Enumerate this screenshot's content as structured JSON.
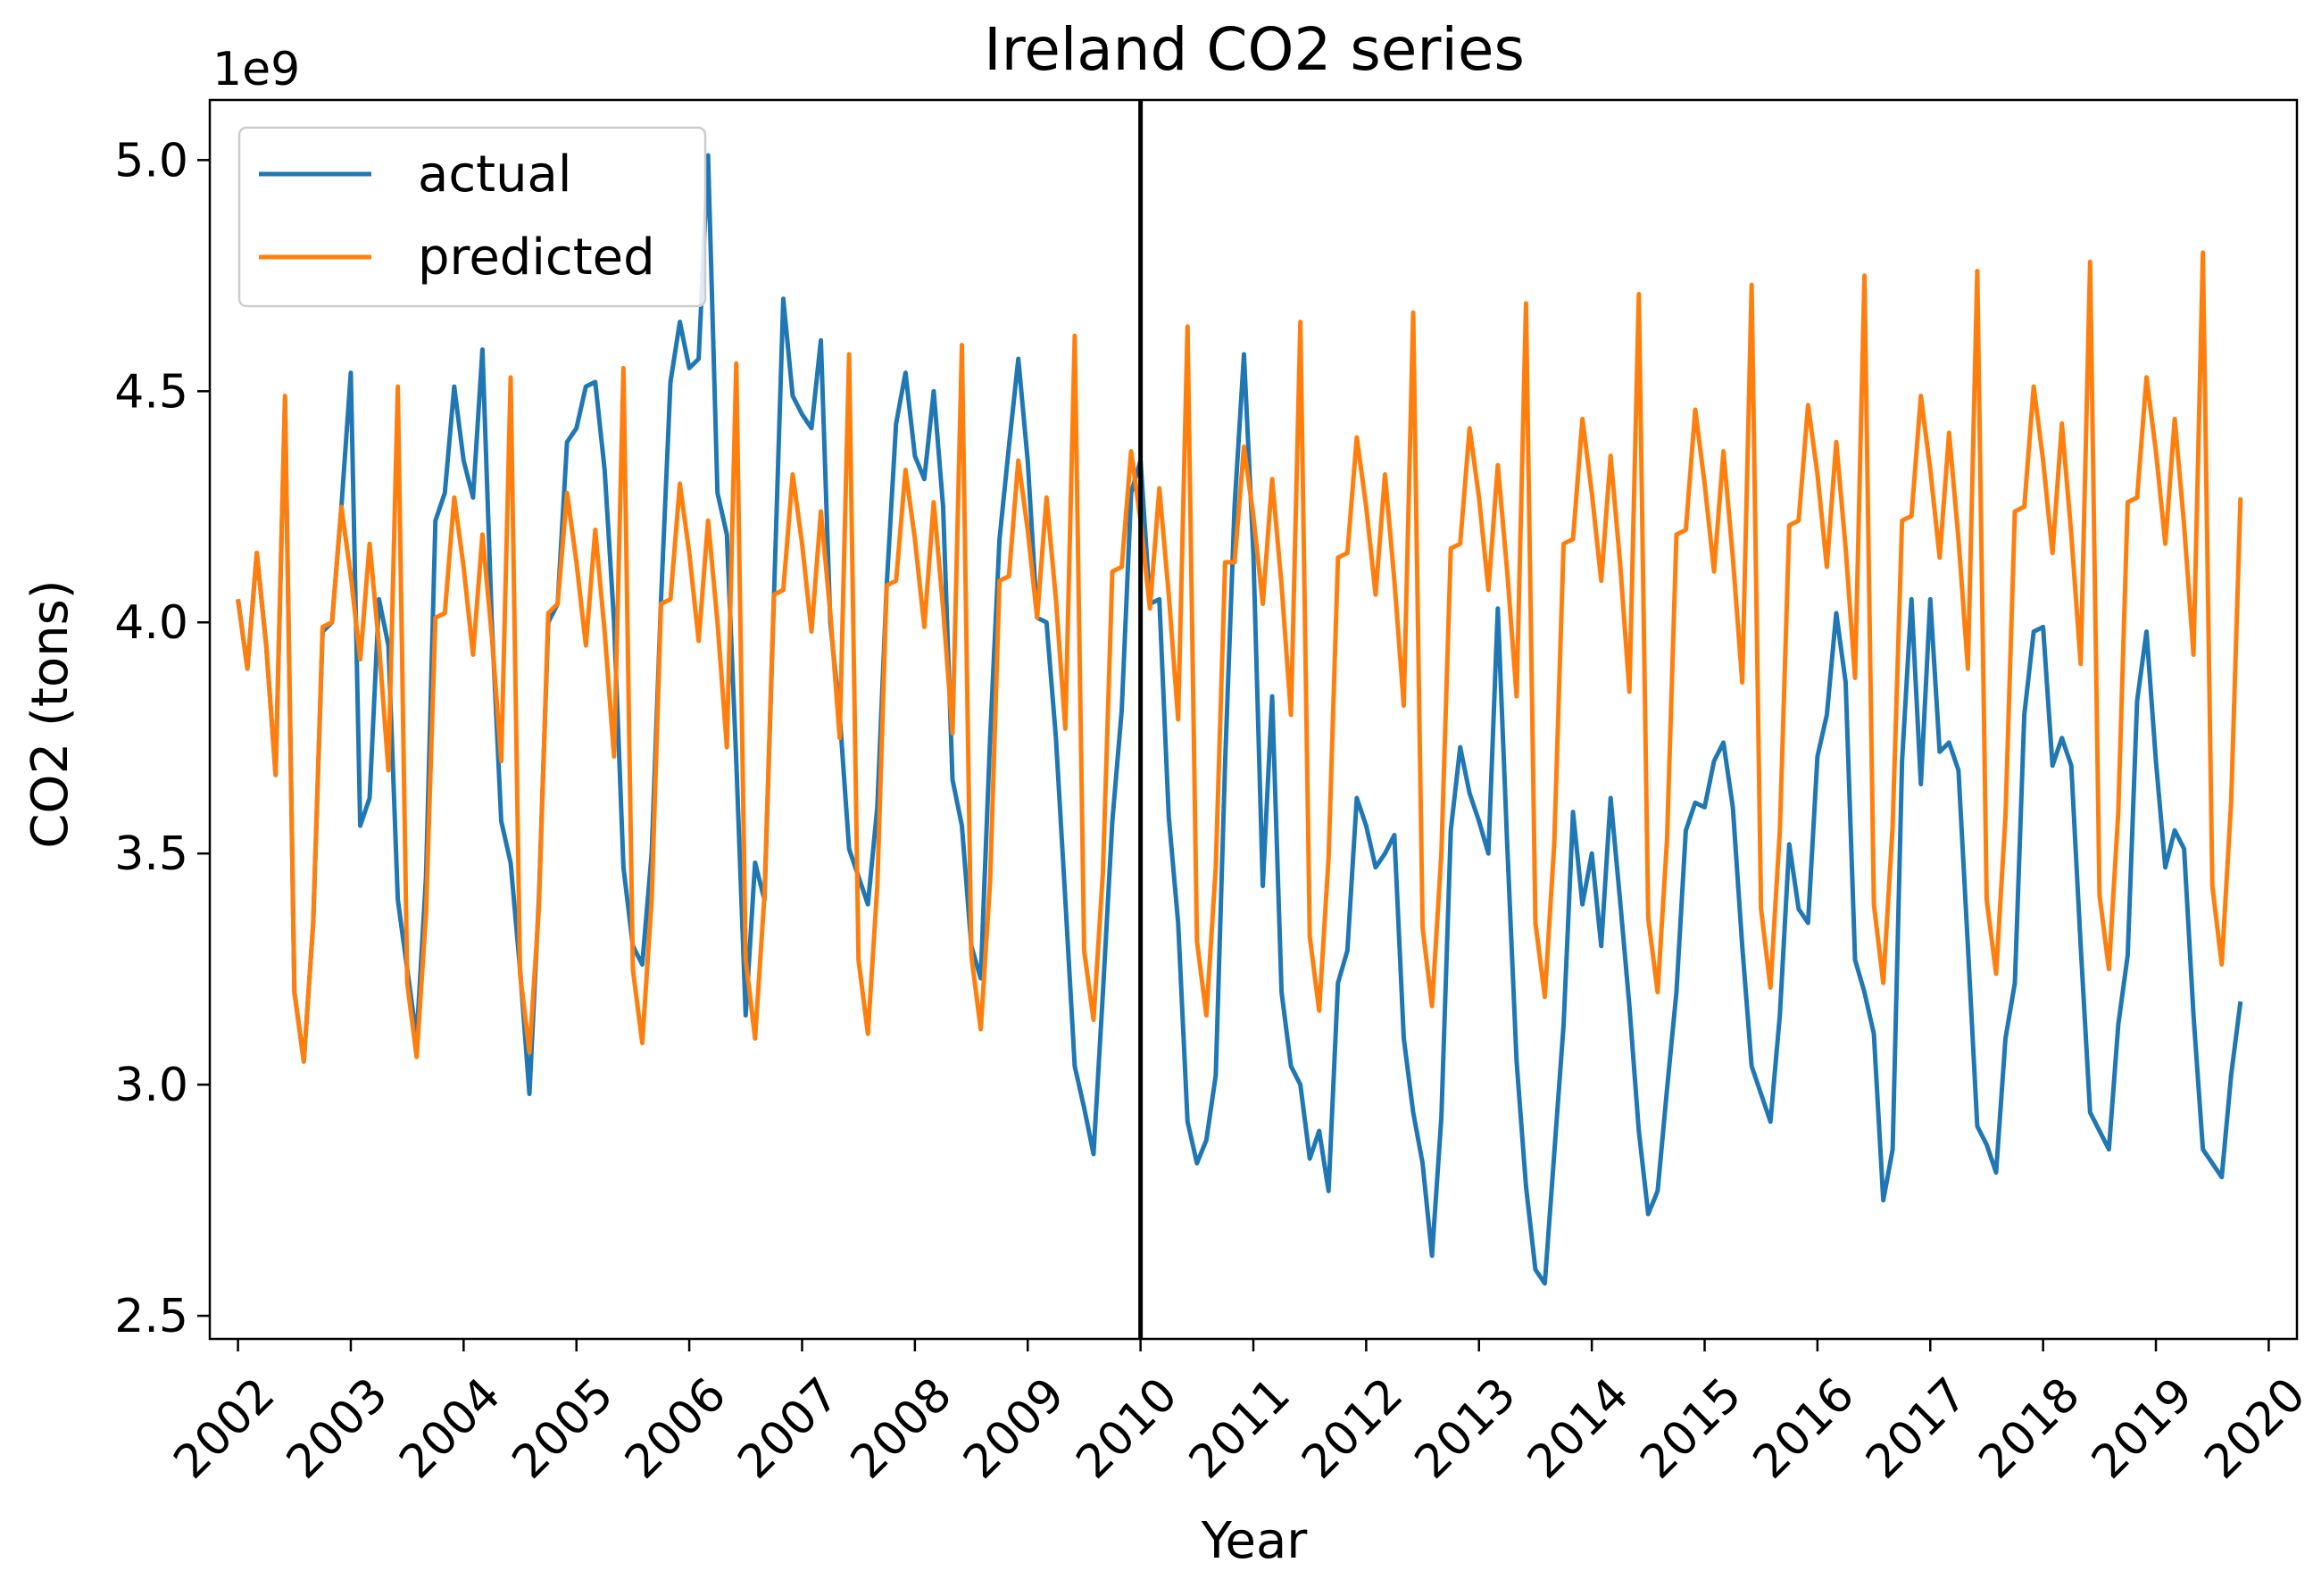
{
  "chart_data": {
    "type": "line",
    "title": "Ireland  CO2 series",
    "xlabel": "Year",
    "ylabel": "CO2 (tons)",
    "y_offset_text": "1e9",
    "y_scale": 1000000000,
    "xlim": [
      2001.75,
      2020.25
    ],
    "ylim": [
      2.45,
      5.13
    ],
    "x_ticks": [
      2002,
      2003,
      2004,
      2005,
      2006,
      2007,
      2008,
      2009,
      2010,
      2011,
      2012,
      2013,
      2014,
      2015,
      2016,
      2017,
      2018,
      2019,
      2020
    ],
    "x_tick_labels": [
      "2002",
      "2003",
      "2004",
      "2005",
      "2006",
      "2007",
      "2008",
      "2009",
      "2010",
      "2011",
      "2012",
      "2013",
      "2014",
      "2015",
      "2016",
      "2017",
      "2018",
      "2019",
      "2020"
    ],
    "y_ticks": [
      2.5,
      3.0,
      3.5,
      4.0,
      4.5,
      5.0
    ],
    "y_tick_labels": [
      "2.5",
      "3.0",
      "3.5",
      "4.0",
      "4.5",
      "5.0"
    ],
    "vertical_line_x": 2010,
    "vertical_line_color": "#000000",
    "grid": false,
    "legend_position": "top-left",
    "x_start": 2002,
    "x_step_months": 1,
    "series": [
      {
        "name": "actual",
        "color": "#1f77b4",
        "values": [
          4.05,
          3.9,
          4.15,
          3.95,
          3.67,
          4.48,
          3.2,
          3.05,
          3.35,
          3.98,
          4.0,
          4.25,
          4.54,
          3.56,
          3.62,
          4.05,
          3.95,
          3.4,
          3.25,
          3.1,
          3.45,
          4.22,
          4.28,
          4.51,
          4.35,
          4.27,
          4.59,
          4.0,
          3.57,
          3.48,
          3.25,
          2.98,
          3.4,
          4.0,
          4.04,
          4.39,
          4.42,
          4.51,
          4.52,
          4.33,
          4.0,
          3.47,
          3.3,
          3.26,
          3.5,
          4.05,
          4.52,
          4.65,
          4.55,
          4.57,
          5.01,
          4.28,
          4.19,
          3.7,
          3.15,
          3.48,
          3.4,
          4.05,
          4.7,
          4.49,
          4.45,
          4.42,
          4.61,
          4.0,
          3.8,
          3.51,
          3.45,
          3.39,
          3.6,
          4.08,
          4.43,
          4.54,
          4.36,
          4.31,
          4.5,
          4.25,
          3.66,
          3.56,
          3.3,
          3.23,
          3.75,
          4.18,
          4.38,
          4.57,
          4.35,
          4.01,
          4.0,
          3.75,
          3.4,
          3.04,
          2.95,
          2.85,
          3.2,
          3.57,
          3.81,
          4.28,
          4.35,
          4.04,
          4.05,
          3.58,
          3.35,
          2.92,
          2.83,
          2.88,
          3.02,
          3.7,
          4.25,
          4.58,
          4.15,
          3.43,
          3.84,
          3.2,
          3.04,
          3.0,
          2.84,
          2.9,
          2.77,
          3.22,
          3.29,
          3.62,
          3.56,
          3.47,
          3.5,
          3.54,
          3.1,
          2.94,
          2.83,
          2.63,
          2.93,
          3.55,
          3.73,
          3.63,
          3.57,
          3.5,
          4.03,
          3.52,
          3.05,
          2.78,
          2.6,
          2.57,
          2.85,
          3.13,
          3.59,
          3.39,
          3.5,
          3.3,
          3.62,
          3.4,
          3.17,
          2.9,
          2.72,
          2.77,
          2.99,
          3.2,
          3.55,
          3.61,
          3.6,
          3.7,
          3.74,
          3.6,
          3.3,
          3.04,
          2.98,
          2.92,
          3.15,
          3.52,
          3.38,
          3.35,
          3.71,
          3.8,
          4.02,
          3.87,
          3.27,
          3.2,
          3.11,
          2.75,
          2.86,
          3.7,
          4.05,
          3.65,
          4.05,
          3.72,
          3.74,
          3.68,
          3.3,
          2.91,
          2.87,
          2.81,
          3.1,
          3.22,
          3.8,
          3.98,
          3.99,
          3.69,
          3.75,
          3.69,
          3.3,
          2.94,
          2.9,
          2.86,
          3.13,
          3.28,
          3.83,
          3.98,
          3.7,
          3.47,
          3.55,
          3.51,
          3.15,
          2.86,
          2.83,
          2.8,
          3.02,
          3.18
        ]
      },
      {
        "name": "predicted",
        "color": "#ff7f0e",
        "values": [
          4.05,
          3.9,
          4.15,
          3.95,
          3.67,
          4.49,
          3.2,
          3.05,
          3.35,
          3.99,
          4.0,
          4.25,
          4.1,
          3.92,
          4.17,
          3.95,
          3.68,
          4.51,
          3.22,
          3.06,
          3.37,
          4.01,
          4.02,
          4.27,
          4.12,
          3.93,
          4.19,
          3.97,
          3.7,
          4.53,
          3.24,
          3.07,
          3.38,
          4.02,
          4.04,
          4.28,
          4.13,
          3.95,
          4.2,
          3.98,
          3.71,
          4.55,
          3.25,
          3.09,
          3.4,
          4.04,
          4.05,
          4.3,
          4.15,
          3.96,
          4.22,
          4.0,
          3.73,
          4.56,
          3.27,
          3.1,
          3.41,
          4.06,
          4.07,
          4.32,
          4.17,
          3.98,
          4.24,
          4.02,
          3.75,
          4.58,
          3.27,
          3.11,
          3.43,
          4.08,
          4.09,
          4.33,
          4.18,
          3.99,
          4.26,
          4.03,
          3.76,
          4.6,
          3.28,
          3.12,
          3.44,
          4.09,
          4.1,
          4.35,
          4.2,
          4.01,
          4.27,
          4.05,
          3.77,
          4.62,
          3.29,
          3.14,
          3.46,
          4.11,
          4.12,
          4.37,
          4.22,
          4.03,
          4.29,
          4.06,
          3.79,
          4.64,
          3.31,
          3.15,
          3.47,
          4.13,
          4.13,
          4.38,
          4.23,
          4.04,
          4.31,
          4.08,
          3.8,
          4.65,
          3.32,
          3.16,
          3.49,
          4.14,
          4.15,
          4.4,
          4.25,
          4.06,
          4.32,
          4.09,
          3.82,
          4.67,
          3.34,
          3.17,
          3.5,
          4.16,
          4.17,
          4.42,
          4.27,
          4.07,
          4.34,
          4.11,
          3.84,
          4.69,
          3.35,
          3.19,
          3.52,
          4.17,
          4.18,
          4.44,
          4.28,
          4.09,
          4.36,
          4.13,
          3.85,
          4.71,
          3.36,
          3.2,
          3.53,
          4.19,
          4.2,
          4.46,
          4.3,
          4.11,
          4.37,
          4.14,
          3.87,
          4.73,
          3.38,
          3.21,
          3.55,
          4.21,
          4.22,
          4.47,
          4.32,
          4.12,
          4.39,
          4.16,
          3.88,
          4.75,
          3.39,
          3.22,
          3.56,
          4.22,
          4.23,
          4.49,
          4.33,
          4.14,
          4.41,
          4.18,
          3.9,
          4.76,
          3.4,
          3.24,
          3.58,
          4.24,
          4.25,
          4.51,
          4.35,
          4.15,
          4.43,
          4.19,
          3.91,
          4.78,
          3.41,
          3.25,
          3.59,
          4.26,
          4.27,
          4.53,
          4.37,
          4.17,
          4.44,
          4.21,
          3.93,
          4.8,
          3.43,
          3.26,
          3.61,
          4.27
        ]
      }
    ]
  }
}
